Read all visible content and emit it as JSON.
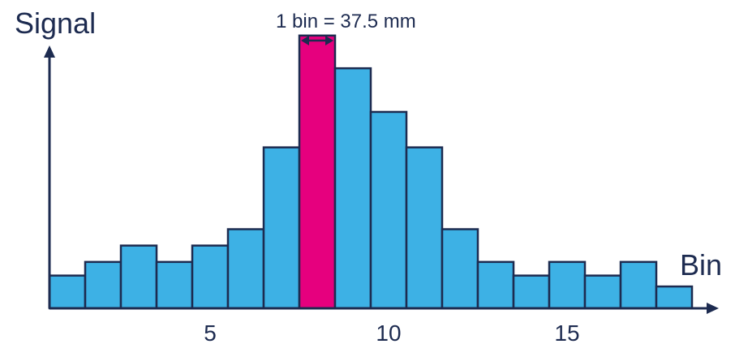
{
  "chart_data": {
    "type": "bar",
    "title": "",
    "ylabel": "Signal",
    "xlabel": "Bin",
    "x_ticks": [
      5,
      10,
      15
    ],
    "bins": [
      1,
      2,
      3,
      4,
      5,
      6,
      7,
      8,
      9,
      10,
      11,
      12,
      13,
      14,
      15,
      16,
      17,
      18
    ],
    "values": [
      1.2,
      1.7,
      2.3,
      1.7,
      2.3,
      2.9,
      5.9,
      10.0,
      8.8,
      7.2,
      5.9,
      2.9,
      1.7,
      1.2,
      1.7,
      1.2,
      1.7,
      0.8
    ],
    "highlight_bin": 8,
    "ylim": [
      0,
      10.5
    ],
    "xlim": [
      0.5,
      18.5
    ],
    "annotation": "1 bin = 37.5 mm",
    "colors": {
      "bar": "#3db1e5",
      "highlight": "#e6007e",
      "edge": "#1d2b50",
      "axis": "#1d2b50"
    }
  }
}
